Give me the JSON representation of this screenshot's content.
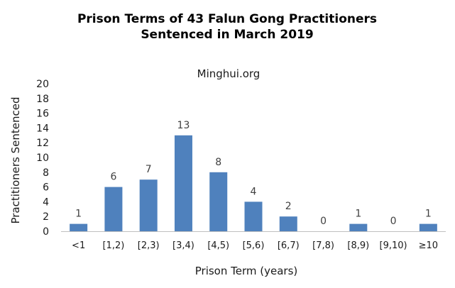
{
  "chart_data": {
    "type": "bar",
    "title_line1": "Prison Terms of 43 Falun Gong Practitioners",
    "title_line2": "Sentenced in March 2019",
    "subtitle": "Minghui.org",
    "xlabel": "Prison Term (years)",
    "ylabel": "Practitioners Sentenced",
    "categories": [
      "<1",
      "[1,2)",
      "[2,3)",
      "[3,4)",
      "[4,5)",
      "[5,6)",
      "[6,7)",
      "[7,8)",
      "[8,9)",
      "[9,10)",
      "≥10"
    ],
    "values": [
      1,
      6,
      7,
      13,
      8,
      4,
      2,
      0,
      1,
      0,
      1
    ],
    "data_labels": [
      "1",
      "6",
      "7",
      "13",
      "8",
      "4",
      "2",
      "0",
      "1",
      "0",
      "1"
    ],
    "y_ticks": [
      "0",
      "2",
      "4",
      "6",
      "8",
      "10",
      "12",
      "14",
      "16",
      "18",
      "20"
    ],
    "ylim": [
      0,
      20
    ],
    "grid": false,
    "legend": "none",
    "bar_color": "#4f81bd"
  }
}
